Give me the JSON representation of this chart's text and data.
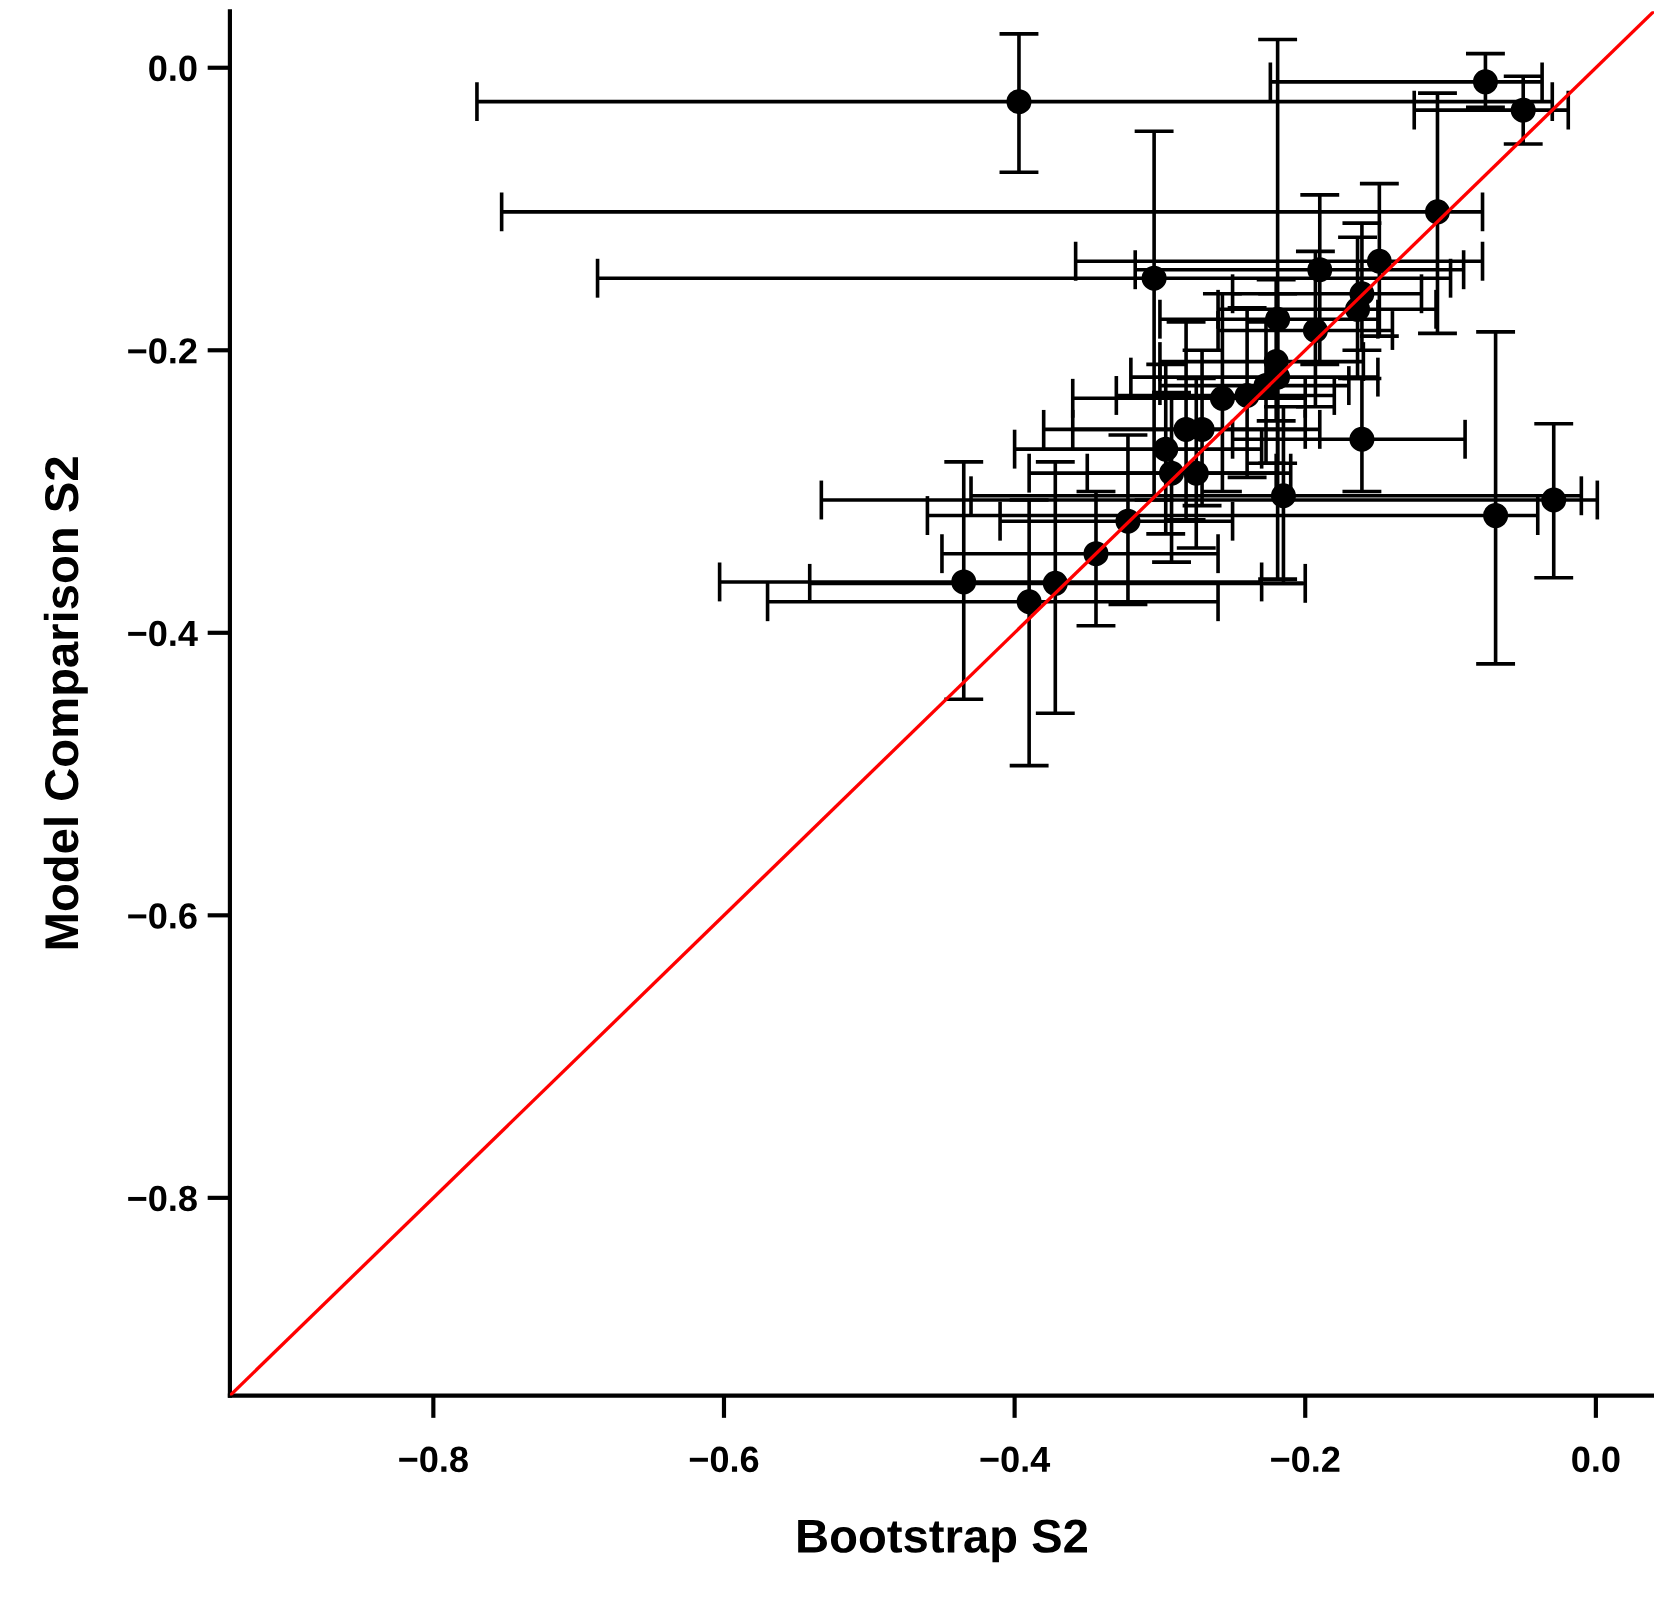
{
  "chart_data": {
    "type": "scatter",
    "xlabel": "Bootstrap S2",
    "ylabel": "Model Comparison S2",
    "xlim": [
      -0.94,
      0.04
    ],
    "ylim": [
      -0.94,
      0.04
    ],
    "xticks": [
      {
        "value": -0.8,
        "label": "−0.8"
      },
      {
        "value": -0.6,
        "label": "−0.6"
      },
      {
        "value": -0.4,
        "label": "−0.4"
      },
      {
        "value": -0.2,
        "label": "−0.2"
      },
      {
        "value": 0.0,
        "label": "0.0"
      }
    ],
    "yticks": [
      {
        "value": -0.8,
        "label": "−0.8"
      },
      {
        "value": -0.6,
        "label": "−0.6"
      },
      {
        "value": -0.4,
        "label": "−0.4"
      },
      {
        "value": -0.2,
        "label": "−0.2"
      },
      {
        "value": 0.0,
        "label": "0.0"
      }
    ],
    "grid": false,
    "marker": "circle",
    "series": [
      {
        "color": "#000000",
        "x": [
          -0.397,
          -0.076,
          -0.05,
          -0.109,
          -0.149,
          -0.19,
          -0.304,
          -0.161,
          -0.164,
          -0.219,
          -0.193,
          -0.22,
          -0.219,
          -0.257,
          -0.24,
          -0.227,
          -0.296,
          -0.292,
          -0.275,
          -0.282,
          -0.271,
          -0.161,
          -0.215,
          -0.322,
          -0.344,
          -0.372,
          -0.435,
          -0.39,
          -0.069,
          -0.029
        ],
        "values": [
          -0.024,
          -0.01,
          -0.03,
          -0.102,
          -0.137,
          -0.143,
          -0.149,
          -0.16,
          -0.171,
          -0.178,
          -0.186,
          -0.208,
          -0.219,
          -0.234,
          -0.232,
          -0.225,
          -0.27,
          -0.287,
          -0.287,
          -0.256,
          -0.256,
          -0.263,
          -0.303,
          -0.321,
          -0.344,
          -0.365,
          -0.364,
          -0.378,
          -0.317,
          -0.306
        ],
        "errors": [
          [
            -0.074,
            0.024
          ],
          [
            -0.028,
            0.01
          ],
          [
            -0.054,
            -0.006
          ],
          [
            -0.188,
            -0.018
          ],
          [
            -0.19,
            -0.082
          ],
          [
            -0.21,
            -0.09
          ],
          [
            -0.306,
            -0.045
          ],
          [
            -0.2,
            -0.11
          ],
          [
            -0.22,
            -0.12
          ],
          [
            -0.362,
            0.02
          ],
          [
            -0.24,
            -0.13
          ],
          [
            -0.25,
            -0.15
          ],
          [
            -0.28,
            -0.16
          ],
          [
            -0.3,
            -0.16
          ],
          [
            -0.29,
            -0.17
          ],
          [
            -0.28,
            -0.18
          ],
          [
            -0.33,
            -0.21
          ],
          [
            -0.35,
            -0.23
          ],
          [
            -0.34,
            -0.22
          ],
          [
            -0.32,
            -0.18
          ],
          [
            -0.31,
            -0.2
          ],
          [
            -0.3,
            -0.22
          ],
          [
            -0.365,
            -0.24
          ],
          [
            -0.38,
            -0.26
          ],
          [
            -0.395,
            -0.3
          ],
          [
            -0.457,
            -0.279
          ],
          [
            -0.447,
            -0.279
          ],
          [
            -0.494,
            -0.306
          ],
          [
            -0.422,
            -0.187
          ],
          [
            -0.361,
            -0.252
          ]
        ],
        "xerrors": [
          [
            -0.77,
            -0.03
          ],
          [
            -0.224,
            -0.037
          ],
          [
            -0.125,
            -0.019
          ],
          [
            -0.753,
            -0.078
          ],
          [
            -0.358,
            -0.078
          ],
          [
            -0.317,
            -0.091
          ],
          [
            -0.687,
            -0.1
          ],
          [
            -0.25,
            -0.12
          ],
          [
            -0.26,
            -0.11
          ],
          [
            -0.3,
            -0.15
          ],
          [
            -0.26,
            -0.14
          ],
          [
            -0.3,
            -0.16
          ],
          [
            -0.32,
            -0.15
          ],
          [
            -0.36,
            -0.2
          ],
          [
            -0.33,
            -0.18
          ],
          [
            -0.3,
            -0.17
          ],
          [
            -0.4,
            -0.23
          ],
          [
            -0.39,
            -0.22
          ],
          [
            -0.35,
            -0.21
          ],
          [
            -0.38,
            -0.2
          ],
          [
            -0.36,
            -0.19
          ],
          [
            -0.25,
            -0.09
          ],
          [
            -0.43,
            -0.01
          ],
          [
            -0.41,
            -0.25
          ],
          [
            -0.45,
            -0.26
          ],
          [
            -0.541,
            -0.2
          ],
          [
            -0.603,
            -0.23
          ],
          [
            -0.57,
            -0.26
          ],
          [
            -0.46,
            -0.04
          ],
          [
            -0.533,
            0.001
          ]
        ]
      },
      {
        "type": "line",
        "marker": "none",
        "color": "#ff0000",
        "x": [
          -0.94,
          0.04
        ],
        "values": [
          -0.94,
          0.04
        ]
      }
    ]
  }
}
